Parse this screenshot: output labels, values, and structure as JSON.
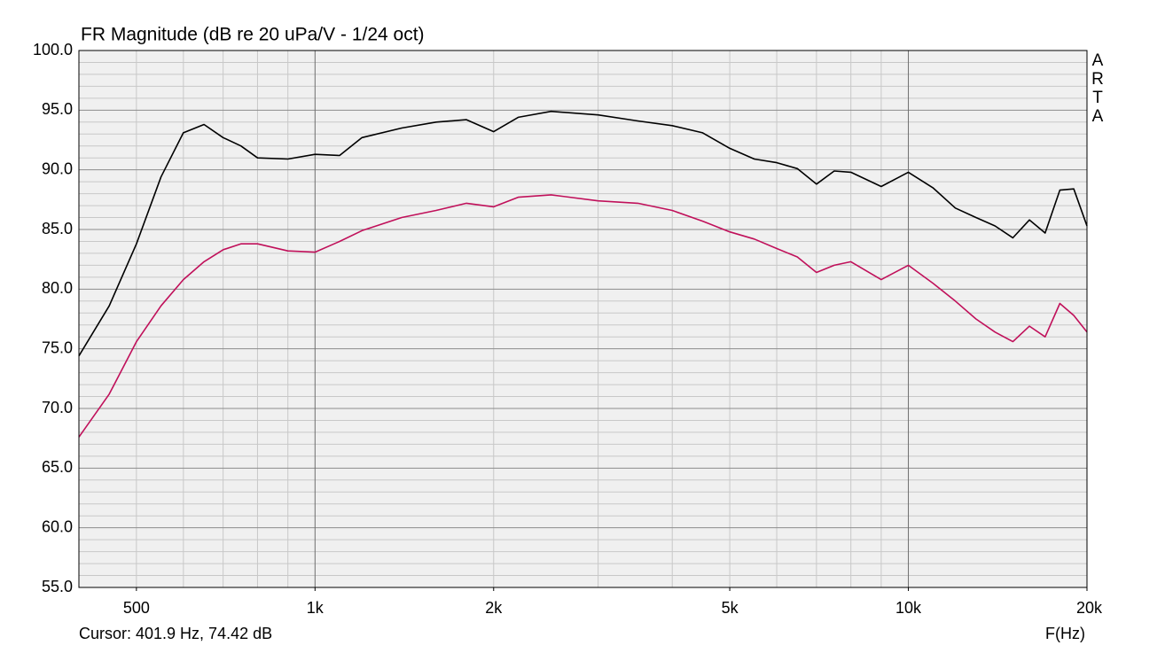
{
  "chart_data": {
    "type": "line",
    "title": "FR Magnitude (dB re 20 uPa/V - 1/24 oct)",
    "watermark": "ARTA",
    "cursor_readout": "Cursor: 401.9 Hz, 74.42 dB",
    "x_label": "F(Hz)",
    "log_x": true,
    "grid": true,
    "xlim": [
      400,
      20000
    ],
    "ylim": [
      55,
      100
    ],
    "xticks": [
      {
        "value": 500,
        "label": "500"
      },
      {
        "value": 1000,
        "label": "1k"
      },
      {
        "value": 2000,
        "label": "2k"
      },
      {
        "value": 5000,
        "label": "5k"
      },
      {
        "value": 10000,
        "label": "10k"
      },
      {
        "value": 20000,
        "label": "20k"
      }
    ],
    "yticks": [
      {
        "value": 55,
        "label": "55.0"
      },
      {
        "value": 60,
        "label": "60.0"
      },
      {
        "value": 65,
        "label": "65.0"
      },
      {
        "value": 70,
        "label": "70.0"
      },
      {
        "value": 75,
        "label": "75.0"
      },
      {
        "value": 80,
        "label": "80.0"
      },
      {
        "value": 85,
        "label": "85.0"
      },
      {
        "value": 90,
        "label": "90.0"
      },
      {
        "value": 95,
        "label": "95.0"
      },
      {
        "value": 100,
        "label": "100.0"
      }
    ],
    "x_major_grid": [
      1000,
      10000
    ],
    "x_minor_grid": [
      400,
      500,
      600,
      700,
      800,
      900,
      2000,
      3000,
      4000,
      5000,
      6000,
      7000,
      8000,
      9000,
      20000
    ],
    "y_minor_grid": [
      56,
      57,
      58,
      59,
      61,
      62,
      63,
      64,
      66,
      67,
      68,
      69,
      71,
      72,
      73,
      74,
      76,
      77,
      78,
      79,
      81,
      82,
      83,
      84,
      86,
      87,
      88,
      89,
      91,
      92,
      93,
      94,
      96,
      97,
      98,
      99
    ],
    "x": [
      400,
      450,
      500,
      550,
      600,
      650,
      700,
      750,
      800,
      900,
      1000,
      1100,
      1200,
      1400,
      1600,
      1800,
      2000,
      2200,
      2500,
      3000,
      3500,
      4000,
      4500,
      5000,
      5500,
      6000,
      6500,
      7000,
      7500,
      8000,
      9000,
      10000,
      11000,
      12000,
      13000,
      14000,
      15000,
      16000,
      17000,
      18000,
      19000,
      20000
    ],
    "series": [
      {
        "color": "#000000",
        "values": [
          74.4,
          78.6,
          83.8,
          89.4,
          93.1,
          93.8,
          92.7,
          92.0,
          91.0,
          90.9,
          91.3,
          91.2,
          92.7,
          93.5,
          94.0,
          94.2,
          93.2,
          94.4,
          94.9,
          94.6,
          94.1,
          93.7,
          93.1,
          91.8,
          90.9,
          90.6,
          90.1,
          88.8,
          89.9,
          89.8,
          88.6,
          89.8,
          88.5,
          86.8,
          86.0,
          85.3,
          84.3,
          85.8,
          84.7,
          88.3,
          88.4,
          85.3
        ]
      },
      {
        "color": "#c0105a",
        "values": [
          67.6,
          71.2,
          75.6,
          78.6,
          80.8,
          82.3,
          83.3,
          83.8,
          83.8,
          83.2,
          83.1,
          84.0,
          84.9,
          86.0,
          86.6,
          87.2,
          86.9,
          87.7,
          87.9,
          87.4,
          87.2,
          86.6,
          85.7,
          84.8,
          84.2,
          83.4,
          82.7,
          81.4,
          82.0,
          82.3,
          80.8,
          82.0,
          80.5,
          79.0,
          77.5,
          76.4,
          75.6,
          76.9,
          76.0,
          78.8,
          77.8,
          76.4
        ]
      }
    ]
  }
}
